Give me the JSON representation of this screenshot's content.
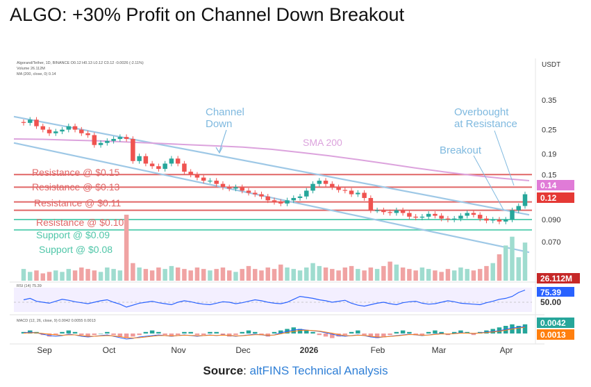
{
  "headline": "ALGO: +30% Profit on Channel Down Breakout",
  "source": {
    "label": "Source",
    "separator": ": ",
    "value": "altFINS Technical Analysis"
  },
  "chart_data": {
    "type": "candlestick",
    "title": "Algorand/Tether, 1D, BINANCE",
    "legend_lines": [
      "Algorand/Tether, 1D, BINANCE  O0.12  H0.13  L0.12  C0.12  -0.0026 (-2.11%)",
      "Volume  26.112M",
      "MA (200, close, 0)  0.14"
    ],
    "currency_label": "USDT",
    "price_axis_ticks": [
      "0.35",
      "0.25",
      "0.19",
      "0.15",
      "0.090",
      "0.070"
    ],
    "price_badges": [
      {
        "text": "0.14",
        "color": "#e07bd7"
      },
      {
        "text": "0.12",
        "color": "#e53935"
      },
      {
        "text": "26.112M",
        "color": "#c62828"
      },
      {
        "text": "75.39",
        "color": "#2962ff"
      },
      {
        "text": "50.00",
        "color": "#ffffff"
      },
      {
        "text": "0.0042",
        "color": "#26a69a"
      },
      {
        "text": "0.0013",
        "color": "#ff7f0e"
      }
    ],
    "x_ticks": [
      "Sep",
      "Oct",
      "Nov",
      "Dec",
      "2026",
      "Feb",
      "Mar",
      "Apr"
    ],
    "bold_x_tick": "2026",
    "horizontal_levels": [
      {
        "label": "Resistance @ $0.15",
        "value": 0.15,
        "kind": "resistance"
      },
      {
        "label": "Resistance @ $0.13",
        "value": 0.13,
        "kind": "resistance"
      },
      {
        "label": "Resistance @ $0.11",
        "value": 0.11,
        "kind": "resistance"
      },
      {
        "label": "Resistance @ $0.10",
        "value": 0.1,
        "kind": "resistance"
      },
      {
        "label": "Support @ $0.09",
        "value": 0.09,
        "kind": "support"
      },
      {
        "label": "Support @ $0.08",
        "value": 0.08,
        "kind": "support"
      }
    ],
    "annotations": {
      "channel": "Channel Down",
      "sma": "SMA 200",
      "breakout": "Breakout",
      "overbought": "Overbought at Resistance"
    },
    "channel_lines": {
      "upper": [
        {
          "date": "Aug 28",
          "price": 0.29
        },
        {
          "date": "Apr 5",
          "price": 0.095
        }
      ],
      "lower": [
        {
          "date": "Aug 28",
          "price": 0.215
        },
        {
          "date": "Apr 5",
          "price": 0.062
        }
      ]
    },
    "price_path": [
      0.27,
      0.28,
      0.26,
      0.25,
      0.24,
      0.245,
      0.25,
      0.26,
      0.25,
      0.24,
      0.235,
      0.21,
      0.215,
      0.22,
      0.225,
      0.23,
      0.225,
      0.175,
      0.185,
      0.17,
      0.165,
      0.16,
      0.17,
      0.18,
      0.17,
      0.155,
      0.15,
      0.145,
      0.14,
      0.14,
      0.135,
      0.13,
      0.128,
      0.13,
      0.125,
      0.122,
      0.12,
      0.117,
      0.112,
      0.11,
      0.108,
      0.112,
      0.115,
      0.117,
      0.125,
      0.135,
      0.14,
      0.135,
      0.13,
      0.126,
      0.125,
      0.12,
      0.122,
      0.115,
      0.1,
      0.1,
      0.098,
      0.097,
      0.1,
      0.097,
      0.093,
      0.092,
      0.093,
      0.096,
      0.094,
      0.091,
      0.09,
      0.091,
      0.094,
      0.097,
      0.095,
      0.091,
      0.089,
      0.09,
      0.088,
      0.09,
      0.1,
      0.105,
      0.12
    ],
    "sma_200": [
      0.225,
      0.224,
      0.222,
      0.22,
      0.217,
      0.214,
      0.211,
      0.208,
      0.205,
      0.2,
      0.193,
      0.186,
      0.178,
      0.17,
      0.162,
      0.155,
      0.149,
      0.144,
      0.14
    ],
    "volume": [
      8,
      6,
      7,
      5,
      6,
      7,
      6,
      8,
      7,
      9,
      8,
      7,
      6,
      9,
      8,
      7,
      45,
      12,
      9,
      8,
      7,
      9,
      8,
      10,
      9,
      8,
      7,
      9,
      8,
      7,
      8,
      9,
      7,
      6,
      8,
      10,
      8,
      7,
      9,
      8,
      11,
      9,
      8,
      7,
      9,
      12,
      10,
      9,
      8,
      7,
      9,
      10,
      8,
      7,
      9,
      8,
      10,
      13,
      11,
      9,
      8,
      7,
      9,
      8,
      7,
      6,
      8,
      7,
      9,
      8,
      7,
      8,
      10,
      12,
      18,
      24,
      30,
      16,
      26
    ],
    "rsi": {
      "label": "RSI (14)  75.39",
      "value": 75.39,
      "midline": 50,
      "values": [
        55,
        58,
        52,
        50,
        48,
        52,
        56,
        54,
        51,
        49,
        47,
        50,
        53,
        55,
        50,
        46,
        40,
        44,
        48,
        50,
        52,
        49,
        47,
        45,
        50,
        53,
        51,
        48,
        46,
        45,
        48,
        51,
        50,
        47,
        49,
        52,
        55,
        53,
        50,
        48,
        47,
        50,
        56,
        62,
        60,
        58,
        55,
        53,
        50,
        52,
        54,
        48,
        44,
        42,
        45,
        48,
        50,
        47,
        45,
        49,
        51,
        52,
        48,
        46,
        47,
        50,
        53,
        51,
        48,
        47,
        46,
        45,
        49,
        52,
        56,
        58,
        62,
        70,
        75
      ]
    },
    "macd": {
      "label": "MACD (12, 26, close, 9)  0.0042  0.0055  0.0013",
      "histogram": [
        1,
        2,
        1,
        -1,
        -2,
        -1,
        1,
        2,
        1,
        -1,
        -2,
        -1,
        0,
        1,
        -1,
        -2,
        -3,
        -2,
        -1,
        1,
        2,
        1,
        -1,
        -2,
        -1,
        1,
        1,
        -1,
        -1,
        1,
        1,
        -1,
        -2,
        -1,
        1,
        2,
        1,
        -1,
        -2,
        1,
        2,
        3,
        4,
        3,
        2,
        1,
        -1,
        -2,
        -3,
        -2,
        -1,
        1,
        2,
        -1,
        -2,
        -3,
        -2,
        -1,
        1,
        2,
        1,
        -1,
        -1,
        1,
        2,
        1,
        -1,
        1,
        2,
        1,
        -1,
        1,
        2,
        3,
        4,
        5,
        6,
        5,
        6
      ],
      "macd_line": [
        0.1,
        0.2,
        0.1,
        -0.1,
        -0.3,
        -0.4,
        -0.3,
        -0.1,
        -0.2,
        -0.4,
        -0.5,
        -0.4,
        -0.3,
        -0.2,
        -0.4,
        -0.6,
        -0.8,
        -0.7,
        -0.5,
        -0.4,
        -0.3,
        -0.2,
        -0.3,
        -0.4,
        -0.3,
        -0.2,
        -0.3,
        -0.4,
        -0.3,
        -0.2,
        -0.3,
        -0.2,
        -0.3,
        -0.4,
        -0.3,
        -0.2,
        -0.1,
        -0.2,
        -0.3,
        -0.2,
        0.1,
        0.3,
        0.5,
        0.6,
        0.5,
        0.4,
        0.3,
        0.1,
        -0.1,
        -0.3,
        -0.4,
        -0.3,
        -0.2,
        -0.3,
        -0.5,
        -0.6,
        -0.5,
        -0.4,
        -0.3,
        -0.2,
        -0.1,
        -0.2,
        -0.3,
        -0.2,
        -0.1,
        0,
        -0.1,
        0,
        0.1,
        0.05,
        0,
        0.1,
        0.2,
        0.3,
        0.4,
        0.6,
        0.8,
        0.9,
        1.0
      ],
      "signal_line": [
        0.05,
        0.1,
        0.1,
        0,
        -0.1,
        -0.2,
        -0.25,
        -0.2,
        -0.2,
        -0.3,
        -0.4,
        -0.4,
        -0.35,
        -0.3,
        -0.35,
        -0.45,
        -0.6,
        -0.65,
        -0.6,
        -0.5,
        -0.4,
        -0.3,
        -0.3,
        -0.35,
        -0.3,
        -0.25,
        -0.27,
        -0.33,
        -0.3,
        -0.25,
        -0.28,
        -0.24,
        -0.27,
        -0.35,
        -0.32,
        -0.25,
        -0.17,
        -0.18,
        -0.25,
        -0.22,
        -0.05,
        0.15,
        0.3,
        0.45,
        0.48,
        0.43,
        0.35,
        0.2,
        0.05,
        -0.15,
        -0.3,
        -0.32,
        -0.25,
        -0.27,
        -0.4,
        -0.5,
        -0.5,
        -0.43,
        -0.35,
        -0.25,
        -0.15,
        -0.17,
        -0.25,
        -0.22,
        -0.14,
        -0.05,
        -0.08,
        -0.03,
        0.05,
        0.05,
        0.02,
        0.06,
        0.14,
        0.23,
        0.33,
        0.48,
        0.65,
        0.78,
        0.9
      ]
    }
  }
}
